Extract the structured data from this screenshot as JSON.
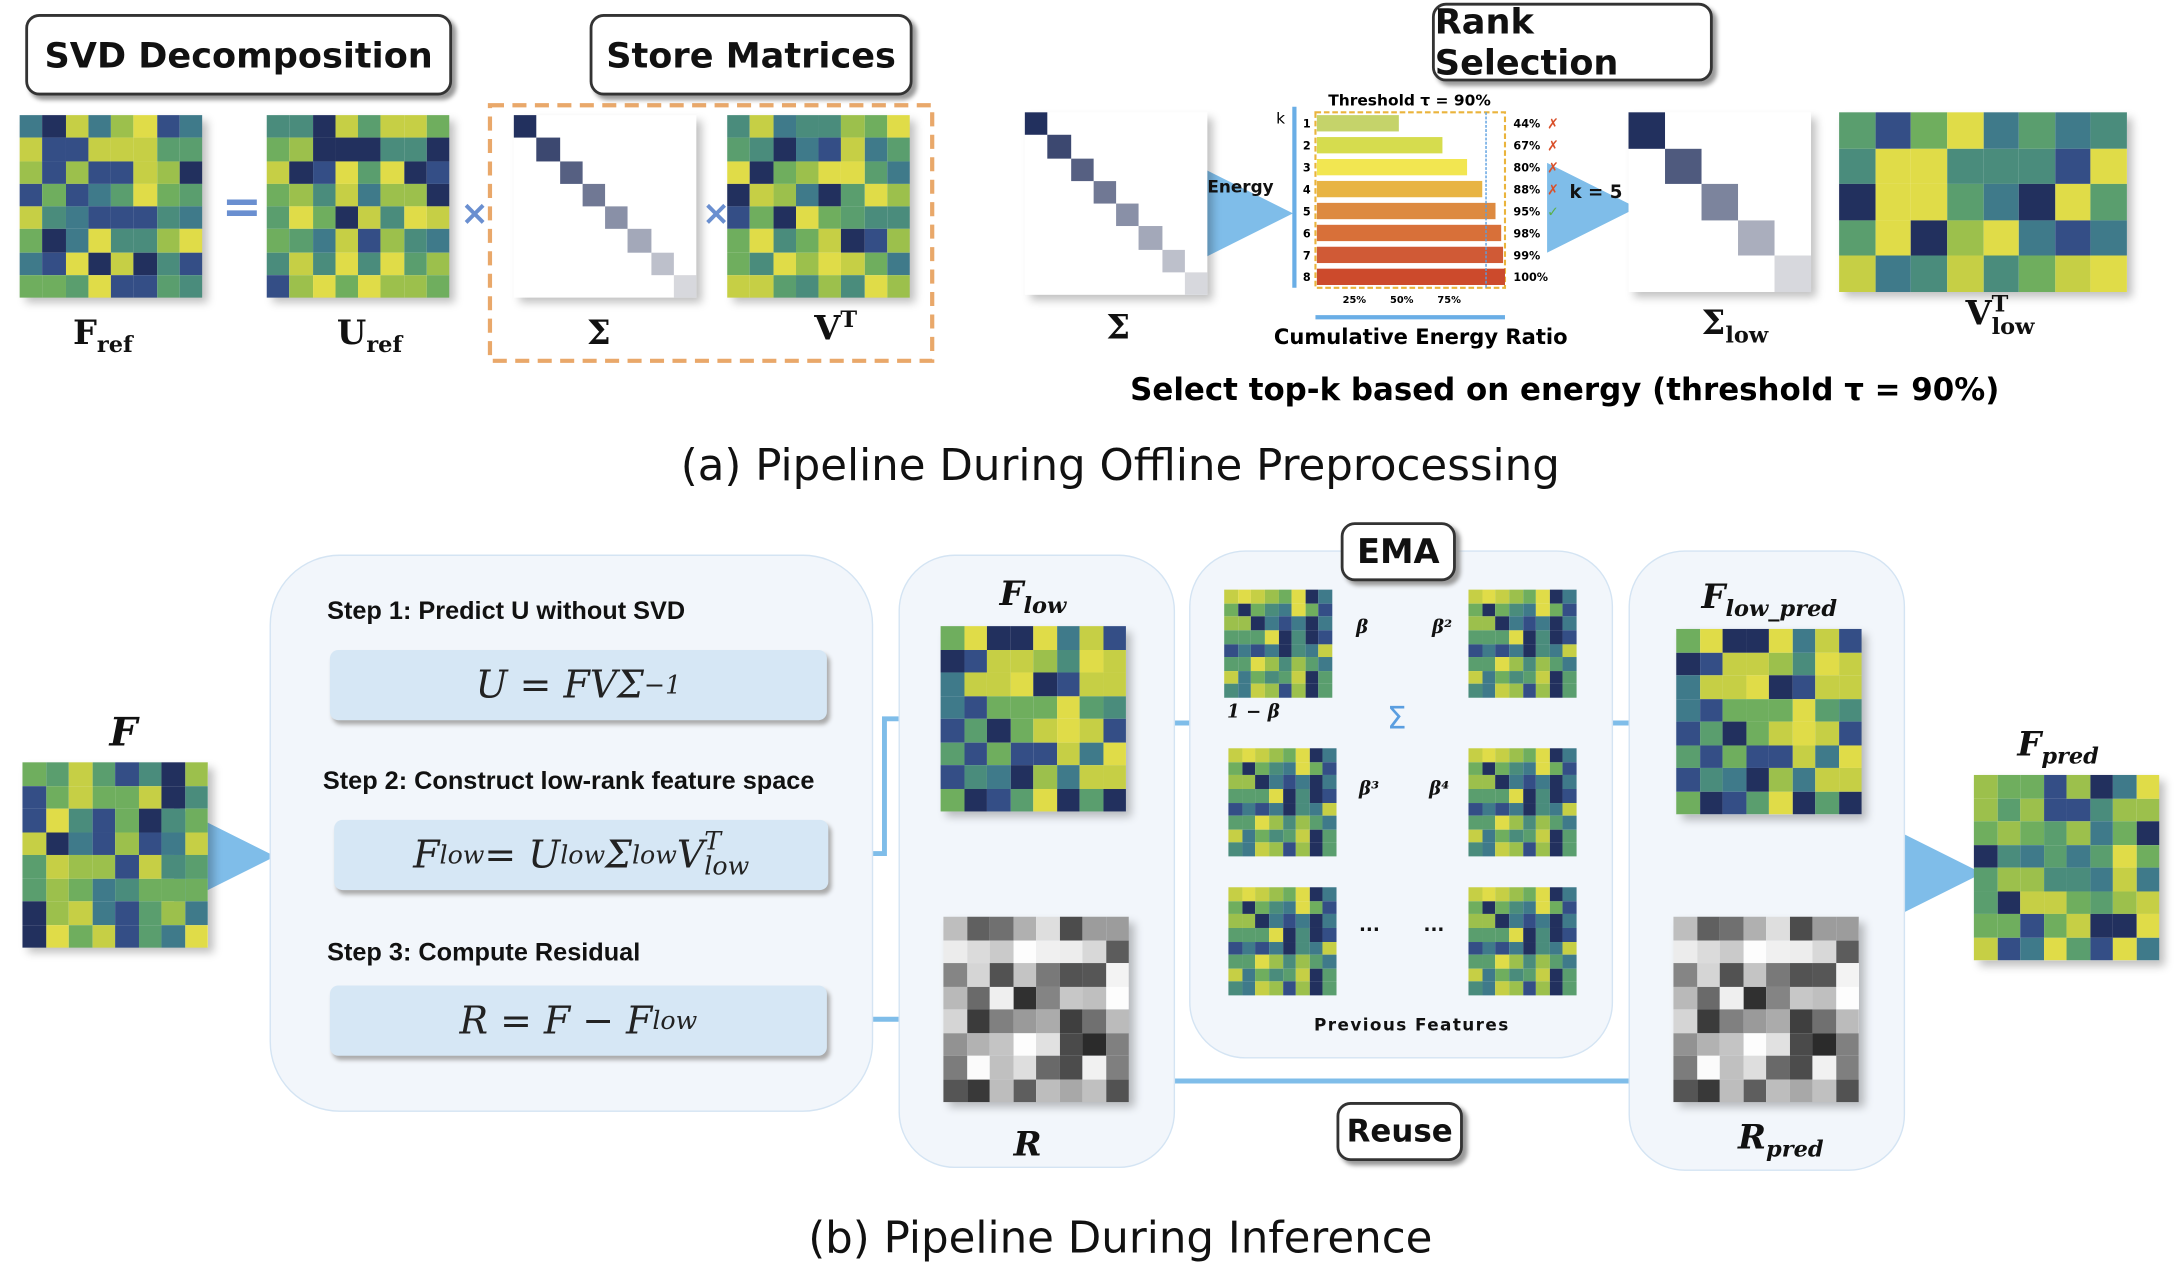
{
  "offline": {
    "boxes": {
      "svd": "SVD Decomposition",
      "store": "Store Matrices",
      "rank": "Rank Selection"
    },
    "labels": {
      "f_ref": "F",
      "f_ref_sub": "ref",
      "u_ref": "U",
      "u_ref_sub": "ref",
      "sigma": "Σ",
      "vt": "V",
      "vt_sup": "T",
      "sigma2": "Σ",
      "sigma_low": "Σ",
      "sigma_low_sub": "low",
      "v_low": "V",
      "v_low_sup": "T",
      "v_low_sub": "low"
    },
    "operators": {
      "equals": "=",
      "times1": "×",
      "times2": "×"
    },
    "energy_label": "Energy",
    "k_label": "k = 5",
    "caption": "Select top-k based on energy (threshold τ = 90%)",
    "title": "(a) Pipeline During Offline Preprocessing"
  },
  "energy_chart": {
    "type": "bar",
    "title": "Threshold τ = 90%",
    "ylabel": "k",
    "xlabel": "Cumulative Energy Ratio",
    "categories": [
      "1",
      "2",
      "3",
      "4",
      "5",
      "6",
      "7",
      "8"
    ],
    "values": [
      44,
      67,
      80,
      88,
      95,
      98,
      99,
      100
    ],
    "value_labels": [
      "44%",
      "67%",
      "80%",
      "88%",
      "95%",
      "98%",
      "99%",
      "100%"
    ],
    "marks": [
      "✗",
      "✗",
      "✗",
      "✗",
      "✓",
      "",
      "",
      ""
    ],
    "xticks": [
      "25%",
      "50%",
      "75%"
    ],
    "threshold": 90,
    "xlim": [
      0,
      100
    ],
    "colors": [
      "#c5d36a",
      "#d6dc4e",
      "#f2e651",
      "#e8b443",
      "#dd8a40",
      "#d87039",
      "#d05a36",
      "#cc4a2c"
    ]
  },
  "inference": {
    "f_label": "F",
    "steps": [
      {
        "label": "Step 1: Predict U without SVD",
        "eq": "U = FVΣ⁻¹"
      },
      {
        "label": "Step 2: Construct low-rank feature space"
      },
      {
        "label": "Step 3: Compute Residual"
      }
    ],
    "eq1": {
      "lhs": "U",
      "rhs": "= FVΣ",
      "sup": "−1"
    },
    "eq2": {
      "lhs": "F",
      "lhs_sub": "low",
      "rhs1": " = U",
      "rhs1_sub": "low",
      "rhs2": "Σ",
      "rhs2_sub": "low",
      "rhs3": "V",
      "rhs3_sup": "T",
      "rhs3_sub": "low"
    },
    "eq3": {
      "lhs": "R = F − F",
      "lhs_sub": "low"
    },
    "f_low": "F",
    "f_low_sub": "low",
    "r_label": "R",
    "ema": "EMA",
    "weights": [
      "β",
      "β²",
      "β³",
      "β⁴",
      "...",
      "..."
    ],
    "one_minus_beta": "1 − β",
    "sum_symbol": "Σ",
    "previous_features": "Previous Features",
    "f_low_pred": "F",
    "f_low_pred_sub": "low_pred",
    "plus": "+",
    "r_pred": "R",
    "r_pred_sub": "pred",
    "f_pred": "F",
    "f_pred_sub": "pred",
    "reuse": "Reuse",
    "title": "(b) Pipeline During Inference"
  },
  "colors": {
    "arrow": "#7fbde9",
    "ema_line": "#7090c8",
    "dashed_box": "#e9a86a",
    "panel_bg": "#f2f6fb",
    "eq_bg": "#d6e7f5"
  }
}
